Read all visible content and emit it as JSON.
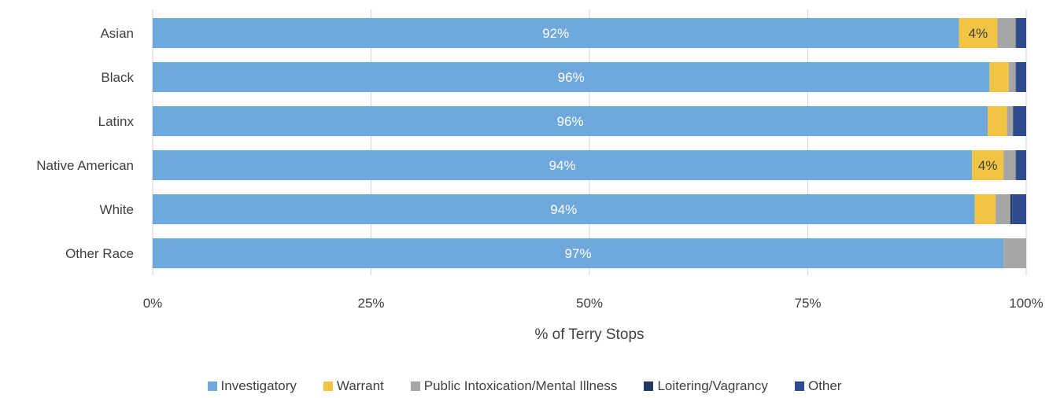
{
  "chart_data": {
    "type": "bar",
    "orientation": "horizontal",
    "stacked": true,
    "categories": [
      "Asian",
      "Black",
      "Latinx",
      "Native American",
      "White",
      "Other Race"
    ],
    "series": [
      {
        "name": "Investigatory",
        "color": "#6FA8DC",
        "values": [
          92.3,
          95.8,
          95.6,
          93.8,
          94.1,
          97.4
        ]
      },
      {
        "name": "Warrant",
        "color": "#F2C443",
        "values": [
          4.4,
          2.2,
          2.2,
          3.6,
          2.4,
          0
        ]
      },
      {
        "name": "Public Intoxication/Mental Illness",
        "color": "#A6A6A6",
        "values": [
          2.1,
          0.8,
          0.7,
          1.4,
          1.7,
          2.6
        ]
      },
      {
        "name": "Loitering/Vagrancy",
        "color": "#1F3864",
        "values": [
          0.1,
          0.1,
          0.1,
          0.1,
          0.2,
          0
        ]
      },
      {
        "name": "Other",
        "color": "#2F4B8F",
        "values": [
          1.1,
          1.1,
          1.4,
          1.1,
          1.6,
          0
        ]
      }
    ],
    "data_labels": [
      {
        "category": "Asian",
        "series": "Investigatory",
        "text": "92%"
      },
      {
        "category": "Asian",
        "series": "Warrant",
        "text": "4%"
      },
      {
        "category": "Black",
        "series": "Investigatory",
        "text": "96%"
      },
      {
        "category": "Latinx",
        "series": "Investigatory",
        "text": "96%"
      },
      {
        "category": "Native American",
        "series": "Investigatory",
        "text": "94%"
      },
      {
        "category": "Native American",
        "series": "Warrant",
        "text": "4%"
      },
      {
        "category": "White",
        "series": "Investigatory",
        "text": "94%"
      },
      {
        "category": "Other Race",
        "series": "Investigatory",
        "text": "97%"
      }
    ],
    "xlabel": "% of Terry Stops",
    "ylabel": "",
    "xlim": [
      0,
      100
    ],
    "ticks": [
      "0%",
      "25%",
      "50%",
      "75%",
      "100%"
    ],
    "tick_values": [
      0,
      25,
      50,
      75,
      100
    ],
    "grid": true,
    "legend_position": "bottom"
  }
}
